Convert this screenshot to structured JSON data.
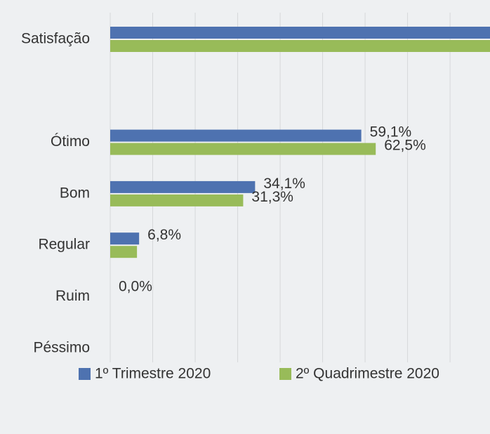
{
  "chart_data": {
    "type": "hbar",
    "categories": [
      "Satisfação",
      null,
      "Ótimo",
      "Bom",
      "Regular",
      "Ruim",
      "Péssimo"
    ],
    "series": [
      {
        "name": "1º Trimestre 2020",
        "color": "#4e72b0",
        "values": [
          93.2,
          null,
          59.1,
          34.1,
          6.8,
          0,
          0
        ],
        "value_labels": [
          null,
          null,
          "59,1%",
          "34,1%",
          "6,8%",
          "0,0%",
          null
        ]
      },
      {
        "name": "2º Quadrimestre 2020",
        "color": "#98bb59",
        "values": [
          93.8,
          null,
          62.5,
          31.3,
          6.3,
          0,
          0
        ],
        "value_labels": [
          null,
          null,
          "62,5%",
          "31,3%",
          null,
          null,
          null
        ]
      }
    ],
    "xlim": [
      0,
      89.4
    ],
    "xticks": [
      0,
      10,
      20,
      30,
      40,
      50,
      60,
      70,
      80
    ],
    "grid": true,
    "legend": "bottom"
  }
}
